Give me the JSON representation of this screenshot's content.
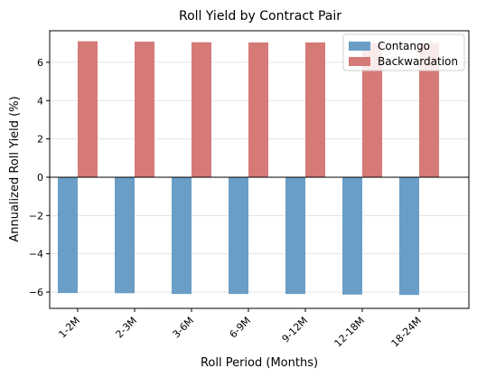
{
  "chart_data": {
    "type": "bar",
    "title": "Roll Yield by Contract Pair",
    "xlabel": "Roll Period (Months)",
    "ylabel": "Annualized Roll Yield (%)",
    "categories": [
      "1-2M",
      "2-3M",
      "3-6M",
      "6-9M",
      "9-12M",
      "12-18M",
      "18-24M"
    ],
    "series": [
      {
        "name": "Contango",
        "color": "#6a9ec6",
        "values": [
          -6.05,
          -6.06,
          -6.1,
          -6.1,
          -6.1,
          -6.13,
          -6.15
        ]
      },
      {
        "name": "Backwardation",
        "color": "#d67a78",
        "values": [
          7.1,
          7.08,
          7.05,
          7.04,
          7.04,
          7.02,
          7.02
        ]
      }
    ],
    "ylim": [
      -6.85,
      7.65
    ],
    "yticks": [
      -6,
      -4,
      -2,
      0,
      2,
      4,
      6
    ],
    "ytick_labels": [
      "−6",
      "−4",
      "−2",
      "0",
      "2",
      "4",
      "6"
    ],
    "grid": "horizontal",
    "legend_position": "top-right"
  }
}
